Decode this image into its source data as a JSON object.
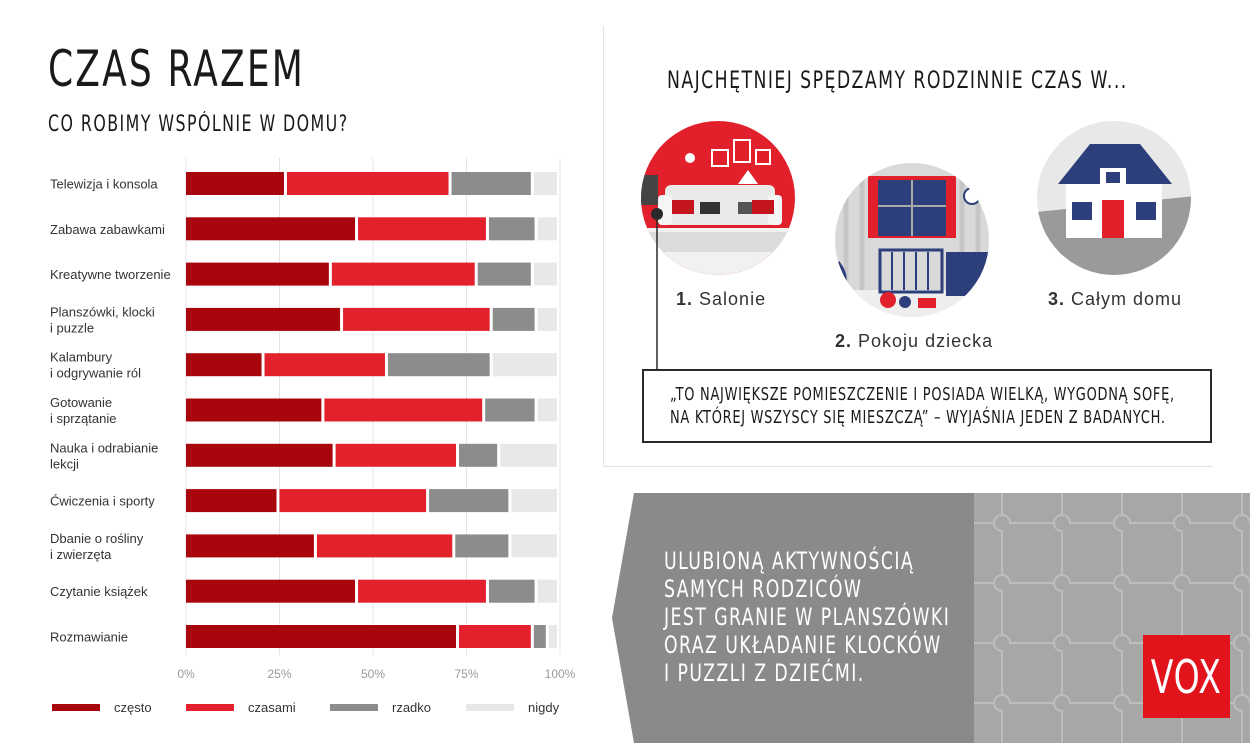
{
  "header": {
    "title": "CZAS RAZEM",
    "subtitle": "CO ROBIMY WSPÓLNIE W DOMU?"
  },
  "chart_data": {
    "type": "bar",
    "orientation": "horizontal",
    "stacked": true,
    "normalized": true,
    "categories": [
      [
        "Telewizja i konsola"
      ],
      [
        "Zabawa zabawkami"
      ],
      [
        "Kreatywne tworzenie"
      ],
      [
        "Planszówki, klocki",
        "i puzzle"
      ],
      [
        "Kalambury",
        "i odgrywanie ról"
      ],
      [
        "Gotowanie",
        "i sprzątanie"
      ],
      [
        "Nauka i odrabianie",
        "lekcji"
      ],
      [
        "Ćwiczenia i sporty"
      ],
      [
        "Dbanie o rośliny",
        "i zwierzęta"
      ],
      [
        "Czytanie książek"
      ],
      [
        "Rozmawianie"
      ]
    ],
    "series": [
      {
        "name": "często",
        "color": "#a8050d",
        "values": [
          27,
          46,
          39,
          42,
          21,
          37,
          40,
          25,
          35,
          46,
          73
        ]
      },
      {
        "name": "czasami",
        "color": "#e2212c",
        "values": [
          44,
          35,
          39,
          40,
          33,
          43,
          33,
          40,
          37,
          35,
          20
        ]
      },
      {
        "name": "rzadko",
        "color": "#8c8c8c",
        "values": [
          22,
          13,
          15,
          12,
          28,
          14,
          11,
          22,
          15,
          13,
          4
        ]
      },
      {
        "name": "nigdy",
        "color": "#e8e8e8",
        "values": [
          7,
          6,
          7,
          6,
          18,
          6,
          16,
          13,
          13,
          6,
          3
        ]
      }
    ],
    "x_ticks": [
      "0%",
      "25%",
      "50%",
      "75%",
      "100%"
    ],
    "xlim": [
      0,
      100
    ],
    "grid": true,
    "legend_position": "bottom"
  },
  "right": {
    "title": "NAJCHĘTNIEJ SPĘDZAMY RODZINNIE CZAS W...",
    "places": [
      {
        "num": "1.",
        "label": "Salonie",
        "icon": "living-room-icon"
      },
      {
        "num": "2.",
        "label": "Pokoju dziecka",
        "icon": "kids-room-icon"
      },
      {
        "num": "3.",
        "label": "Całym domu",
        "icon": "house-icon"
      }
    ],
    "quote": "„TO NAJWIĘKSZE POMIESZCZENIE I POSIADA WIELKĄ, WYGODNĄ SOFĘ,\nNA KTÓREJ WSZYSCY SIĘ MIESZCZĄ” – WYJAŚNIA JEDEN Z BADANYCH."
  },
  "bottom": {
    "text": "ULUBIONĄ AKTYWNOŚCIĄ\nSAMYCH RODZICÓW\nJEST GRANIE W PLANSZÓWKI\nORAZ UKŁADANIE KLOCKÓW\nI PUZZLI Z DZIEĆMI.",
    "logo": "VOX",
    "colors": {
      "panel": "#8a8a8a",
      "puzzle": "#a8a8a8",
      "logo_bg": "#e1141b"
    }
  }
}
